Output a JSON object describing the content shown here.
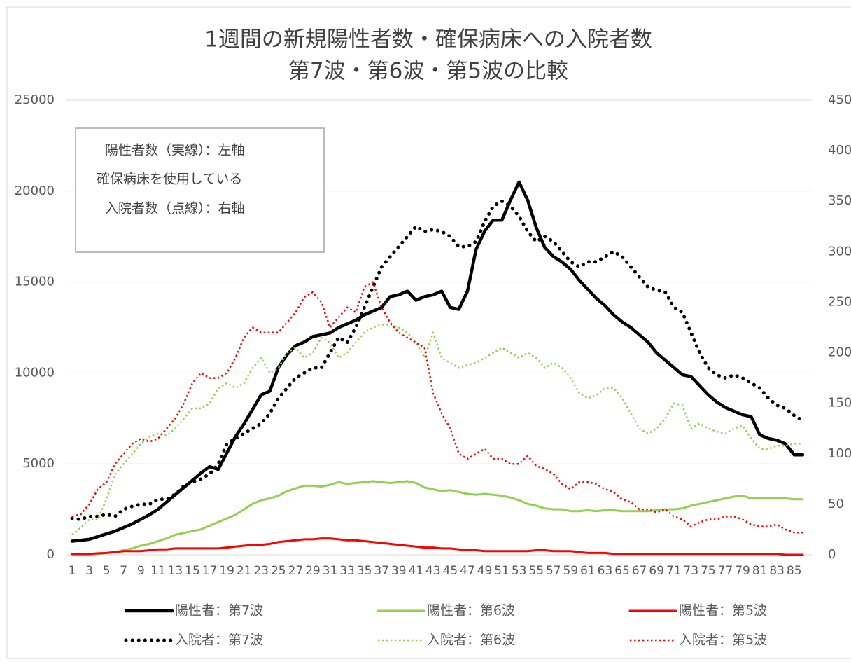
{
  "chart_data": {
    "type": "line",
    "title": [
      "1週間の新規陽性者数・確保病床への入院者数",
      "第7波・第6波・第5波の比較"
    ],
    "annotation": [
      "陽性者数（実線）：左軸",
      "確保病床を使用している",
      "入院者数（点線）：右軸"
    ],
    "categories": [
      1,
      null,
      3,
      null,
      5,
      null,
      7,
      null,
      9,
      null,
      11,
      null,
      13,
      null,
      15,
      null,
      17,
      null,
      19,
      null,
      21,
      null,
      23,
      null,
      25,
      null,
      27,
      null,
      29,
      null,
      31,
      null,
      33,
      null,
      35,
      null,
      37,
      null,
      39,
      null,
      41,
      null,
      43,
      null,
      45,
      null,
      47,
      null,
      49,
      null,
      51,
      null,
      53,
      null,
      55,
      null,
      57,
      null,
      59,
      null,
      61,
      null,
      63,
      null,
      65,
      null,
      67,
      null,
      69,
      null,
      71,
      null,
      73,
      null,
      75,
      null,
      77,
      null,
      79,
      null,
      81,
      null,
      83,
      null,
      85,
      null
    ],
    "ylim": [
      0,
      25000
    ],
    "yticks": [
      0,
      5000,
      10000,
      15000,
      20000,
      25000
    ],
    "y2lim": [
      0,
      450
    ],
    "y2ticks": [
      0,
      50,
      100,
      150,
      200,
      250,
      300,
      350,
      400,
      450
    ],
    "grid": true,
    "legend": "bottom",
    "series": [
      {
        "name": "陽性者：第7波",
        "color": "#000000",
        "style": "solid",
        "axis": "y",
        "values": [
          750,
          800,
          850,
          1000,
          1150,
          1300,
          1500,
          1700,
          1950,
          2200,
          2500,
          2900,
          3300,
          3700,
          4100,
          4500,
          4850,
          4700,
          5600,
          6500,
          7200,
          8000,
          8800,
          9000,
          10300,
          11000,
          11500,
          11700,
          12000,
          12100,
          12200,
          12500,
          12700,
          12900,
          13200,
          13400,
          13600,
          14200,
          14300,
          14500,
          14000,
          14200,
          14300,
          14500,
          13600,
          13500,
          14500,
          16800,
          17800,
          18400,
          18400,
          19500,
          20500,
          19500,
          18000,
          16900,
          16400,
          16100,
          15700,
          15100,
          14600,
          14100,
          13700,
          13200,
          12800,
          12500,
          12100,
          11700,
          11100,
          10700,
          10300,
          9900,
          9800,
          9300,
          8800,
          8400,
          8100,
          7900,
          7700,
          7600,
          6600,
          6400,
          6300,
          6100,
          5500,
          5500
        ]
      },
      {
        "name": "入院者：第7波",
        "color": "#000000",
        "style": "dotted",
        "axis": "y2",
        "values": [
          36,
          35,
          38,
          38,
          40,
          38,
          45,
          48,
          50,
          50,
          55,
          55,
          60,
          68,
          72,
          75,
          80,
          90,
          110,
          115,
          120,
          125,
          130,
          140,
          155,
          165,
          175,
          180,
          185,
          185,
          200,
          215,
          210,
          225,
          245,
          265,
          285,
          295,
          305,
          315,
          325,
          320,
          322,
          320,
          315,
          305,
          305,
          310,
          330,
          345,
          350,
          345,
          335,
          320,
          310,
          315,
          310,
          300,
          290,
          285,
          290,
          290,
          295,
          300,
          295,
          285,
          275,
          265,
          262,
          260,
          245,
          240,
          220,
          200,
          185,
          178,
          175,
          178,
          175,
          170,
          165,
          155,
          148,
          145,
          138,
          133
        ]
      },
      {
        "name": "陽性者：第6波",
        "color": "#92d050",
        "style": "solid",
        "axis": "y",
        "values": [
          0,
          0,
          20,
          50,
          100,
          150,
          250,
          350,
          500,
          600,
          750,
          900,
          1100,
          1200,
          1300,
          1400,
          1600,
          1800,
          2000,
          2200,
          2500,
          2800,
          3000,
          3100,
          3250,
          3500,
          3650,
          3800,
          3800,
          3750,
          3850,
          4000,
          3900,
          3950,
          4000,
          4050,
          4000,
          3950,
          4000,
          4050,
          3950,
          3700,
          3600,
          3500,
          3550,
          3450,
          3350,
          3300,
          3350,
          3300,
          3250,
          3150,
          3000,
          2800,
          2700,
          2550,
          2500,
          2500,
          2400,
          2400,
          2450,
          2400,
          2450,
          2450,
          2400,
          2400,
          2400,
          2400,
          2450,
          2500,
          2500,
          2550,
          2700,
          2800,
          2900,
          3000,
          3100,
          3200,
          3250,
          3100,
          3100,
          3100,
          3100,
          3100,
          3050,
          3050
        ]
      },
      {
        "name": "入院者：第6波",
        "color": "#92d050",
        "style": "dotted",
        "axis": "y2",
        "values": [
          20,
          27,
          35,
          35,
          55,
          80,
          90,
          100,
          110,
          117,
          120,
          118,
          125,
          135,
          145,
          145,
          150,
          165,
          170,
          165,
          170,
          185,
          195,
          180,
          185,
          200,
          205,
          195,
          200,
          215,
          210,
          195,
          200,
          210,
          220,
          225,
          228,
          228,
          225,
          220,
          210,
          195,
          220,
          195,
          190,
          185,
          188,
          190,
          195,
          200,
          205,
          200,
          195,
          200,
          195,
          185,
          190,
          185,
          175,
          160,
          155,
          158,
          165,
          165,
          155,
          140,
          125,
          120,
          125,
          135,
          150,
          148,
          125,
          130,
          125,
          122,
          120,
          125,
          128,
          115,
          105,
          105,
          108,
          108,
          110,
          110
        ]
      },
      {
        "name": "陽性者：第5波",
        "color": "#ff0000",
        "style": "solid",
        "axis": "y",
        "values": [
          50,
          50,
          50,
          80,
          100,
          150,
          200,
          200,
          200,
          250,
          300,
          300,
          350,
          350,
          350,
          350,
          350,
          350,
          400,
          450,
          500,
          550,
          550,
          600,
          700,
          750,
          800,
          850,
          850,
          900,
          900,
          850,
          800,
          800,
          750,
          700,
          650,
          600,
          550,
          500,
          450,
          400,
          400,
          350,
          350,
          300,
          250,
          250,
          200,
          200,
          200,
          200,
          200,
          200,
          250,
          250,
          200,
          200,
          200,
          150,
          100,
          100,
          100,
          50,
          50,
          50,
          50,
          50,
          50,
          50,
          50,
          50,
          50,
          50,
          50,
          50,
          50,
          50,
          50,
          50,
          50,
          50,
          50,
          0,
          0,
          0
        ]
      },
      {
        "name": "入院者：第5波",
        "color": "#ff0000",
        "style": "dotted",
        "axis": "y2",
        "values": [
          38,
          40,
          50,
          65,
          72,
          90,
          100,
          110,
          115,
          112,
          115,
          125,
          135,
          150,
          170,
          180,
          175,
          175,
          180,
          195,
          215,
          225,
          220,
          220,
          220,
          230,
          240,
          255,
          260,
          250,
          225,
          235,
          245,
          240,
          265,
          270,
          245,
          230,
          220,
          215,
          210,
          205,
          160,
          140,
          125,
          100,
          95,
          100,
          105,
          95,
          95,
          90,
          90,
          98,
          88,
          85,
          80,
          70,
          65,
          72,
          72,
          70,
          65,
          62,
          55,
          52,
          45,
          45,
          42,
          45,
          38,
          35,
          28,
          32,
          35,
          35,
          38,
          38,
          35,
          30,
          28,
          28,
          30,
          25,
          22,
          22
        ]
      }
    ]
  }
}
